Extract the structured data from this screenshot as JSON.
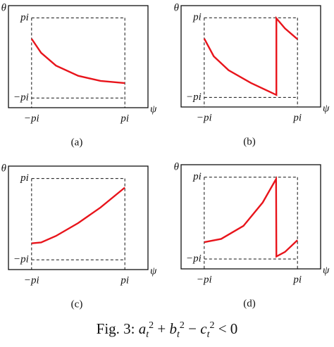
{
  "chart_data": [
    {
      "type": "line",
      "subtitle": "(a)",
      "xlabel": "ψ",
      "ylabel": "θ",
      "xlim": [
        -4.7,
        4.7
      ],
      "ylim": [
        -3.9,
        4.1
      ],
      "xticks": [
        {
          "value": -3.14159,
          "label": "−pi"
        },
        {
          "value": 3.14159,
          "label": "pi"
        }
      ],
      "yticks": [
        {
          "value": -3.14159,
          "label": "−pi"
        },
        {
          "value": 3.14159,
          "label": "pi"
        }
      ],
      "grid": true,
      "x": [
        -3.14,
        -2.5,
        -1.5,
        0,
        1.5,
        3.14
      ],
      "series": [
        {
          "color": "#e8141b",
          "values": [
            1.5,
            0.4,
            -0.6,
            -1.4,
            -1.8,
            -1.97
          ]
        }
      ]
    },
    {
      "type": "line",
      "subtitle": "(b)",
      "xlabel": "ψ",
      "ylabel": "θ",
      "xlim": [
        -4.7,
        4.7
      ],
      "ylim": [
        -3.9,
        4.1
      ],
      "xticks": [
        {
          "value": -3.14159,
          "label": "−pi"
        },
        {
          "value": 3.14159,
          "label": "pi"
        }
      ],
      "yticks": [
        {
          "value": -3.14159,
          "label": "−pi"
        },
        {
          "value": 3.14159,
          "label": "pi"
        }
      ],
      "grid": true,
      "x": [
        -3.14,
        -2.5,
        -1.5,
        0,
        1.72,
        1.72,
        2.3,
        3.14
      ],
      "series": [
        {
          "color": "#e8141b",
          "values": [
            1.5,
            0.1,
            -1.0,
            -2.0,
            -2.95,
            3.1,
            2.3,
            1.45
          ]
        }
      ]
    },
    {
      "type": "line",
      "subtitle": "(c)",
      "xlabel": "ψ",
      "ylabel": "θ",
      "xlim": [
        -4.7,
        4.7
      ],
      "ylim": [
        -3.9,
        4.1
      ],
      "xticks": [
        {
          "value": -3.14159,
          "label": "−pi"
        },
        {
          "value": 3.14159,
          "label": "pi"
        }
      ],
      "yticks": [
        {
          "value": -3.14159,
          "label": "−pi"
        },
        {
          "value": 3.14159,
          "label": "pi"
        }
      ],
      "grid": true,
      "x": [
        -3.14,
        -2.5,
        -1.5,
        0,
        1.5,
        3.14
      ],
      "series": [
        {
          "color": "#e8141b",
          "values": [
            -1.87,
            -1.8,
            -1.3,
            -0.3,
            0.9,
            2.44
          ]
        }
      ]
    },
    {
      "type": "line",
      "subtitle": "(d)",
      "xlabel": "ψ",
      "ylabel": "θ",
      "xlim": [
        -4.7,
        4.7
      ],
      "ylim": [
        -3.9,
        4.1
      ],
      "xticks": [
        {
          "value": -3.14159,
          "label": "−pi"
        },
        {
          "value": 3.14159,
          "label": "pi"
        }
      ],
      "yticks": [
        {
          "value": -3.14159,
          "label": "−pi"
        },
        {
          "value": 3.14159,
          "label": "pi"
        }
      ],
      "grid": true,
      "x": [
        -3.14,
        -2.0,
        -0.5,
        0.8,
        1.7,
        1.72,
        2.3,
        3.14
      ],
      "series": [
        {
          "color": "#e8141b",
          "values": [
            -1.85,
            -1.6,
            -0.6,
            1.2,
            3.0,
            -2.95,
            -2.6,
            -1.7
          ]
        }
      ]
    }
  ],
  "caption": {
    "label": "Fig. 3:",
    "terms": [
      {
        "base": "a",
        "sub": "t",
        "sup": "2"
      },
      {
        "base": "b",
        "sub": "t",
        "sup": "2"
      },
      {
        "base": "c",
        "sub": "t",
        "sup": "2"
      }
    ],
    "operators": [
      "+",
      "−",
      "< 0"
    ]
  }
}
